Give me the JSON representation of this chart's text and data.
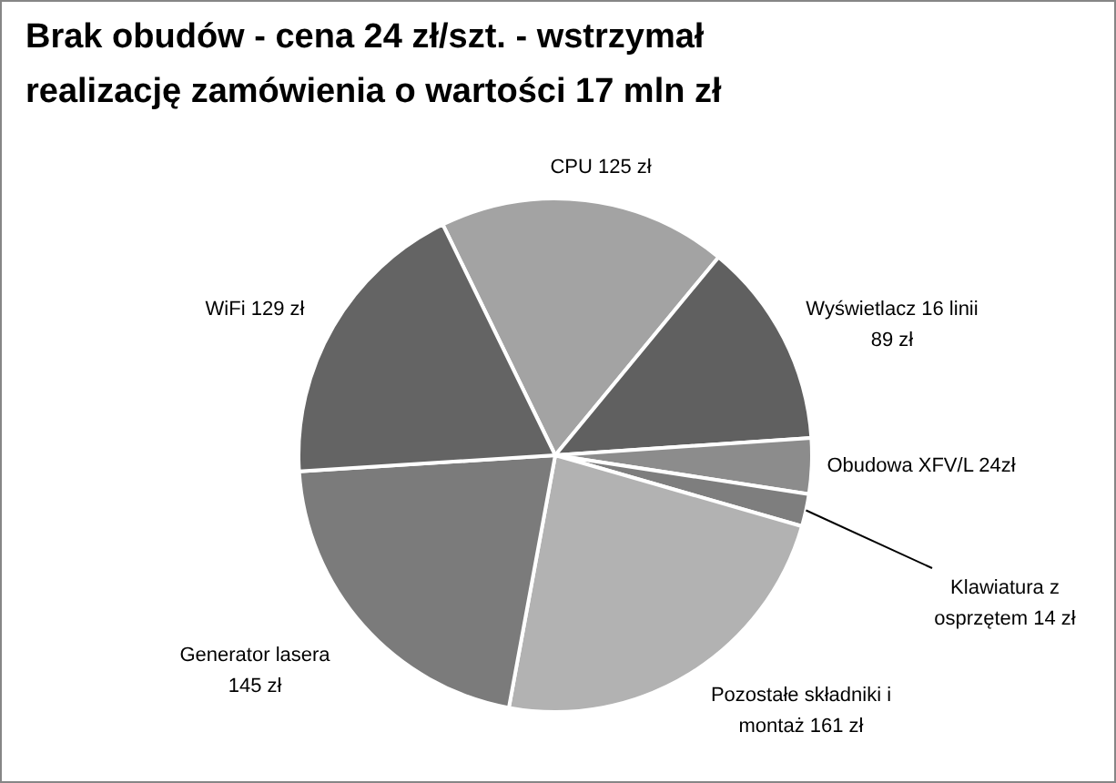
{
  "chart_data": {
    "type": "pie",
    "title": "Brak obudów  - cena 24 zł/szt. - wstrzymał realizację zamówienia o wartości 17 mln zł",
    "categories": [
      "CPU",
      "Wyświetlacz 16 linii",
      "Obudowa XFV/L",
      "Klawiatura z osprzętem",
      "Pozostałe składniki i montaż",
      "Generator lasera",
      "WiFi"
    ],
    "values": [
      125,
      89,
      24,
      14,
      161,
      145,
      129
    ],
    "value_labels": [
      "125 zł",
      "89 zł",
      "24zł",
      "14 zł",
      "161 zł",
      "145 zł",
      "129 zł"
    ],
    "colors": [
      "#a3a3a3",
      "#606060",
      "#8c8c8c",
      "#7e7e7e",
      "#b2b2b2",
      "#7b7b7b",
      "#646464"
    ],
    "legend": false
  }
}
